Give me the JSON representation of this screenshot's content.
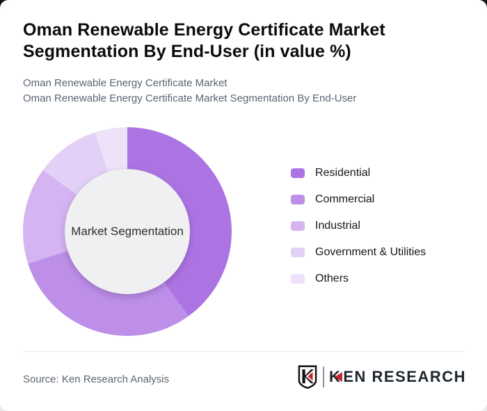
{
  "header": {
    "title_lines": [
      "Oman Renewable Energy Certificate Market",
      "Segmentation By End-User (in value %)"
    ],
    "subtitle_lines": [
      "Oman Renewable Energy Certificate Market",
      "Oman Renewable Energy Certificate Market Segmentation By End-User"
    ]
  },
  "chart_data": {
    "type": "pie",
    "donut": true,
    "title": "Oman Renewable Energy Certificate Market Segmentation By End-User (in value %)",
    "center_label": "Market Segmentation",
    "categories": [
      "Residential",
      "Commercial",
      "Industrial",
      "Government & Utilities",
      "Others"
    ],
    "values": [
      40,
      30,
      15,
      10,
      5
    ],
    "unit": "value %",
    "colors": [
      "#ac74e3",
      "#bd8fe9",
      "#d5b5f1",
      "#e3d0f6",
      "#eee2fa"
    ],
    "start_angle_deg": 0,
    "direction": "clockwise",
    "legend_position": "right",
    "inner_circle_color": "#f0eff1"
  },
  "footer": {
    "source": "Source: Ken Research Analysis",
    "brand": {
      "shield_letter": "K",
      "wordmark_k": "K",
      "wordmark_rest": "EN RESEARCH",
      "red": "#c4262c",
      "dark": "#1d242c"
    }
  }
}
